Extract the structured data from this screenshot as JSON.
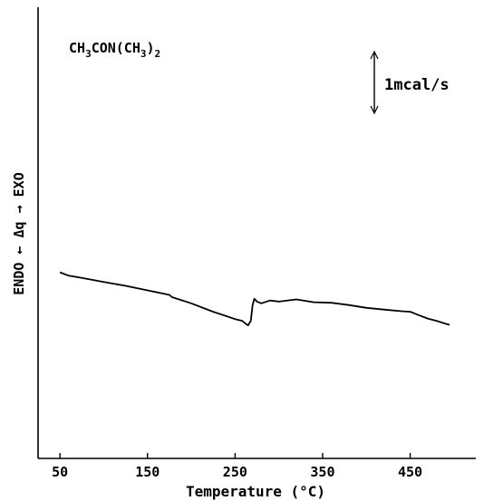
{
  "chart_data": {
    "type": "line",
    "title": "",
    "compound_label": {
      "parts": [
        {
          "text": "CH",
          "sub": false
        },
        {
          "text": "3",
          "sub": true
        },
        {
          "text": "CON(CH",
          "sub": false
        },
        {
          "text": "3",
          "sub": true
        },
        {
          "text": ")",
          "sub": false
        },
        {
          "text": "2",
          "sub": true
        }
      ]
    },
    "scale_bar_label": "1mcal/s",
    "xlabel": "Temperature (°C)",
    "ylabel": {
      "left_word": "ENDO",
      "left_arrow": "←",
      "delta": "Δ",
      "q": "q",
      "right_arrow": "→",
      "right_word": "EXO"
    },
    "x_ticks": [
      "50",
      "150",
      "250",
      "350",
      "450"
    ],
    "x_tick_values": [
      50,
      150,
      250,
      350,
      450
    ],
    "xlim": [
      25,
      525
    ],
    "ylim": [
      -3.0,
      5.0
    ],
    "grid": false,
    "series": [
      {
        "color": "#000000",
        "x": [
          50,
          60,
          75,
          100,
          125,
          150,
          175,
          178,
          200,
          225,
          250,
          258,
          262,
          265,
          268,
          270,
          272,
          275,
          280,
          290,
          300,
          320,
          340,
          360,
          380,
          400,
          420,
          440,
          450,
          460,
          470,
          480,
          490,
          495
        ],
        "y": [
          0.3,
          0.24,
          0.2,
          0.13,
          0.06,
          -0.02,
          -0.1,
          -0.14,
          -0.25,
          -0.4,
          -0.53,
          -0.56,
          -0.61,
          -0.64,
          -0.56,
          -0.28,
          -0.17,
          -0.22,
          -0.25,
          -0.2,
          -0.22,
          -0.18,
          -0.23,
          -0.24,
          -0.28,
          -0.33,
          -0.36,
          -0.39,
          -0.4,
          -0.46,
          -0.52,
          -0.56,
          -0.61,
          -0.63
        ]
      }
    ]
  }
}
